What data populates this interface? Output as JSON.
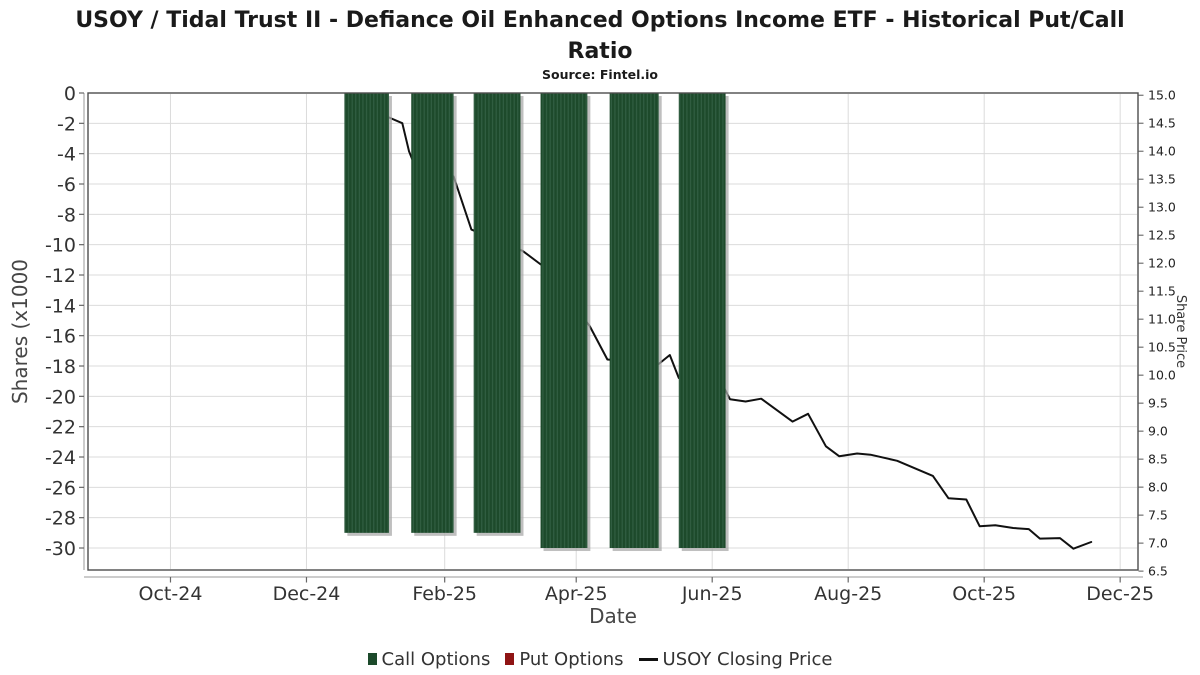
{
  "title": "USOY / Tidal Trust II - Defiance Oil Enhanced Options Income ETF - Historical Put/Call Ratio",
  "subtitle": "Source: Fintel.io",
  "legend": [
    {
      "label": "Call Options",
      "marker": "square",
      "color": "#1c4a2b"
    },
    {
      "label": "Put Options",
      "marker": "square",
      "color": "#8f1414"
    },
    {
      "label": "USOY Closing Price",
      "marker": "line",
      "color": "#111111"
    }
  ],
  "chart_data": {
    "type": "mixed",
    "title": "USOY / Tidal Trust II - Defiance Oil Enhanced Options Income ETF - Historical Put/Call Ratio",
    "subtitle": "Source: Fintel.io",
    "grid": true,
    "legend_position": "bottom",
    "x_axis": {
      "label": "Date",
      "range": [
        "2024-08-25",
        "2025-12-09"
      ],
      "tick_dates": [
        "2024-10-01",
        "2024-12-01",
        "2025-02-01",
        "2025-04-01",
        "2025-06-01",
        "2025-08-01",
        "2025-10-01",
        "2025-12-01"
      ],
      "tick_labels": [
        "Oct-24",
        "Dec-24",
        "Feb-25",
        "Apr-25",
        "Jun-25",
        "Aug-25",
        "Oct-25",
        "Dec-25"
      ]
    },
    "y_axis_left": {
      "label": "Shares (x1000",
      "range": [
        -31.45,
        0
      ],
      "ticks": [
        0,
        -2,
        -4,
        -6,
        -8,
        -10,
        -12,
        -14,
        -16,
        -18,
        -20,
        -22,
        -24,
        -26,
        -28,
        -30
      ]
    },
    "y_axis_right": {
      "label": "Share Price",
      "range": [
        6.52,
        15.04
      ],
      "ticks": [
        15.0,
        14.5,
        14.0,
        13.5,
        13.0,
        12.5,
        12.0,
        11.5,
        11.0,
        10.5,
        10.0,
        9.5,
        9.0,
        8.5,
        8.0,
        7.5,
        7.0,
        6.5
      ]
    },
    "series": [
      {
        "name": "Call Options",
        "type": "bar",
        "axis": "left",
        "color": "#1d4a2b",
        "stripe_color": "#336044",
        "shadow_color": "#a9a9a9",
        "clusters": [
          {
            "start": "2024-12-18",
            "end": "2025-01-07",
            "value": -29
          },
          {
            "start": "2025-01-17",
            "end": "2025-02-05",
            "value": -29
          },
          {
            "start": "2025-02-14",
            "end": "2025-03-07",
            "value": -29
          },
          {
            "start": "2025-03-16",
            "end": "2025-04-06",
            "value": -30
          },
          {
            "start": "2025-04-16",
            "end": "2025-05-08",
            "value": -30
          },
          {
            "start": "2025-05-17",
            "end": "2025-06-07",
            "value": -30
          }
        ]
      },
      {
        "name": "Put Options",
        "type": "bar",
        "axis": "left",
        "color": "#8f1414",
        "stripe_color": "#a83030",
        "shadow_color": "#a9a9a9",
        "clusters": []
      },
      {
        "name": "USOY Closing Price",
        "type": "line",
        "axis": "right",
        "color": "#111111",
        "points": [
          [
            "2025-01-06",
            14.62
          ],
          [
            "2025-01-13",
            14.5
          ],
          [
            "2025-01-16",
            14.0
          ],
          [
            "2025-01-18",
            13.8
          ],
          [
            "2025-02-05",
            13.55
          ],
          [
            "2025-02-13",
            12.6
          ],
          [
            "2025-03-08",
            12.22
          ],
          [
            "2025-03-17",
            11.95
          ],
          [
            "2025-04-07",
            10.88
          ],
          [
            "2025-04-15",
            10.28
          ],
          [
            "2025-05-08",
            10.2
          ],
          [
            "2025-05-13",
            10.36
          ],
          [
            "2025-05-17",
            9.95
          ],
          [
            "2025-06-06",
            9.8
          ],
          [
            "2025-06-09",
            9.57
          ],
          [
            "2025-06-16",
            9.53
          ],
          [
            "2025-06-23",
            9.58
          ],
          [
            "2025-07-07",
            9.17
          ],
          [
            "2025-07-14",
            9.31
          ],
          [
            "2025-07-22",
            8.73
          ],
          [
            "2025-07-28",
            8.55
          ],
          [
            "2025-08-05",
            8.6
          ],
          [
            "2025-08-11",
            8.58
          ],
          [
            "2025-08-23",
            8.47
          ],
          [
            "2025-09-08",
            8.2
          ],
          [
            "2025-09-15",
            7.8
          ],
          [
            "2025-09-23",
            7.78
          ],
          [
            "2025-09-29",
            7.3
          ],
          [
            "2025-10-06",
            7.32
          ],
          [
            "2025-10-14",
            7.27
          ],
          [
            "2025-10-21",
            7.25
          ],
          [
            "2025-10-26",
            7.08
          ],
          [
            "2025-11-04",
            7.09
          ],
          [
            "2025-11-10",
            6.9
          ],
          [
            "2025-11-18",
            7.02
          ]
        ]
      }
    ]
  }
}
